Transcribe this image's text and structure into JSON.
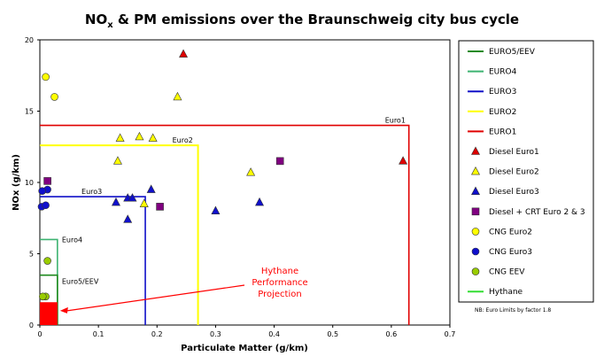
{
  "chart_data": {
    "type": "scatter",
    "title": "NOx & PM emissions over the Braunschweig city bus cycle",
    "title_main": "NO",
    "title_sub": "x",
    "title_rest": " & PM emissions over the Braunschweig city bus cycle",
    "xlabel": "Particulate Matter (g/km)",
    "ylabel": "NOx (g/km)",
    "xlim": [
      0,
      0.7
    ],
    "ylim": [
      0,
      20
    ],
    "xticks": [
      "0",
      "0.1",
      "0.2",
      "0.3",
      "0.4",
      "0.5",
      "0.6",
      "0.7"
    ],
    "yticks": [
      "0",
      "5",
      "10",
      "15",
      "20"
    ],
    "grid": false,
    "legend_position": "right",
    "limits": [
      {
        "name": "EURO5/EEV",
        "label": "Euro5/EEV",
        "pm": 0.03,
        "nox": 3.5,
        "color": "#1e8a1e"
      },
      {
        "name": "EURO4",
        "label": "Euro4",
        "pm": 0.03,
        "nox": 6.0,
        "color": "#3cb371"
      },
      {
        "name": "EURO3",
        "label": "Euro3",
        "pm": 0.18,
        "nox": 9.0,
        "color": "#1010c8"
      },
      {
        "name": "EURO2",
        "label": "Euro2",
        "pm": 0.27,
        "nox": 12.6,
        "color": "#ffff00"
      },
      {
        "name": "EURO1",
        "label": "Euro1",
        "pm": 0.63,
        "nox": 14.0,
        "color": "#e00000"
      }
    ],
    "series": [
      {
        "name": "Diesel Euro1",
        "marker": "triangle",
        "color": "#dd0000",
        "points": [
          [
            0.245,
            19.0
          ],
          [
            0.62,
            11.5
          ]
        ]
      },
      {
        "name": "Diesel Euro2",
        "marker": "triangle",
        "color": "#ffff00",
        "points": [
          [
            0.235,
            16.0
          ],
          [
            0.137,
            13.1
          ],
          [
            0.17,
            13.2
          ],
          [
            0.193,
            13.1
          ],
          [
            0.133,
            11.5
          ],
          [
            0.36,
            10.7
          ],
          [
            0.178,
            8.5
          ]
        ]
      },
      {
        "name": "Diesel Euro3",
        "marker": "triangle",
        "color": "#1010cc",
        "points": [
          [
            0.19,
            9.5
          ],
          [
            0.13,
            8.6
          ],
          [
            0.15,
            8.9
          ],
          [
            0.158,
            8.9
          ],
          [
            0.375,
            8.6
          ],
          [
            0.3,
            8.0
          ],
          [
            0.15,
            7.4
          ]
        ]
      },
      {
        "name": "Diesel + CRT Euro 2 & 3",
        "marker": "square",
        "color": "#800080",
        "points": [
          [
            0.013,
            10.1
          ],
          [
            0.41,
            11.5
          ],
          [
            0.205,
            8.3
          ]
        ]
      },
      {
        "name": "CNG Euro2",
        "marker": "circle",
        "color": "#ffff00",
        "points": [
          [
            0.01,
            17.4
          ],
          [
            0.025,
            16.0
          ]
        ]
      },
      {
        "name": "CNG Euro3",
        "marker": "circle",
        "color": "#1010cc",
        "points": [
          [
            0.013,
            9.5
          ],
          [
            0.004,
            9.4
          ],
          [
            0.003,
            8.3
          ],
          [
            0.01,
            8.4
          ]
        ]
      },
      {
        "name": "CNG EEV",
        "marker": "circle",
        "color": "#99cc00",
        "points": [
          [
            0.013,
            4.5
          ],
          [
            0.01,
            2.0
          ],
          [
            0.005,
            2.0
          ]
        ]
      },
      {
        "name": "Hythane",
        "marker": "rect",
        "color": "#ff0000",
        "points": [
          [
            0.0,
            0.0
          ],
          [
            0.03,
            1.6
          ]
        ]
      }
    ],
    "legend": [
      {
        "label": "EURO5/EEV",
        "kind": "line",
        "color": "#1e8a1e"
      },
      {
        "label": "EURO4",
        "kind": "line",
        "color": "#3cb371"
      },
      {
        "label": "EURO3",
        "kind": "line",
        "color": "#1010c8"
      },
      {
        "label": "EURO2",
        "kind": "line",
        "color": "#ffff00"
      },
      {
        "label": "EURO1",
        "kind": "line",
        "color": "#e00000"
      },
      {
        "label": "Diesel Euro1",
        "kind": "triangle",
        "color": "#dd0000"
      },
      {
        "label": "Diesel Euro2",
        "kind": "triangle",
        "color": "#ffff00"
      },
      {
        "label": "Diesel Euro3",
        "kind": "triangle",
        "color": "#1010cc"
      },
      {
        "label": "Diesel + CRT Euro 2 & 3",
        "kind": "square",
        "color": "#800080"
      },
      {
        "label": "CNG Euro2",
        "kind": "circle",
        "color": "#ffff00"
      },
      {
        "label": "CNG Euro3",
        "kind": "circle",
        "color": "#1010cc"
      },
      {
        "label": "CNG EEV",
        "kind": "circle",
        "color": "#99cc00"
      },
      {
        "label": "Hythane",
        "kind": "line",
        "color": "#33dd33"
      }
    ],
    "annotation": {
      "lines": [
        "Hythane",
        "Performance",
        "Projection"
      ],
      "color": "#ff0000",
      "arrow_target": [
        0.03,
        1.0
      ]
    },
    "note": "NB: Euro Limits by factor 1.8"
  }
}
